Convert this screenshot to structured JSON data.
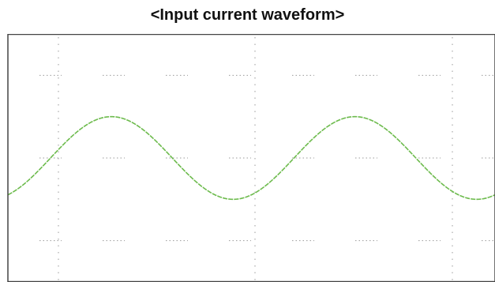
{
  "title": "<Input current waveform>",
  "chart_data": {
    "type": "line",
    "title": "<Input current waveform>",
    "xlabel": "",
    "ylabel": "",
    "grid": true,
    "legend": "none",
    "xlim": [
      0,
      8
    ],
    "ylim": [
      -3,
      3
    ],
    "series": [
      {
        "line_color": "#6dbb4d",
        "style": "sine",
        "amplitude": 1,
        "period": 4,
        "peak_x": 1.7,
        "offset": 0
      }
    ]
  },
  "colors": {
    "background": "#ffffff",
    "frame": "#444444",
    "grid": "#9a9a9a",
    "trace": "#6dbb4d"
  }
}
